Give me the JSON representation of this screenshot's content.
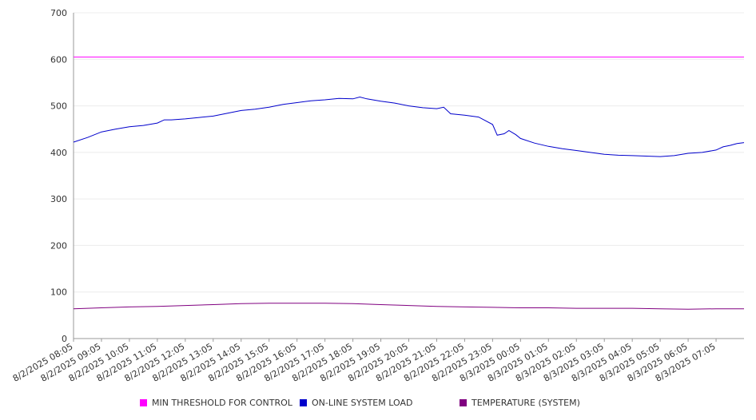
{
  "chart_data": {
    "type": "line",
    "ylim": [
      0,
      700
    ],
    "yticks": [
      0,
      100,
      200,
      300,
      400,
      500,
      600,
      700
    ],
    "x_tick_labels": [
      "8/2/2025 08:05",
      "8/2/2025 09:05",
      "8/2/2025 10:05",
      "8/2/2025 11:05",
      "8/2/2025 12:05",
      "8/2/2025 13:05",
      "8/2/2025 14:05",
      "8/2/2025 15:05",
      "8/2/2025 16:05",
      "8/2/2025 17:05",
      "8/2/2025 18:05",
      "8/2/2025 19:05",
      "8/2/2025 20:05",
      "8/2/2025 21:05",
      "8/2/2025 22:05",
      "8/2/2025 23:05",
      "8/3/2025 00:05",
      "8/3/2025 01:05",
      "8/3/2025 02:05",
      "8/3/2025 03:05",
      "8/3/2025 04:05",
      "8/3/2025 05:05",
      "8/3/2025 06:05",
      "8/3/2025 07:05"
    ],
    "x_range": [
      "8/2/2025 08:05",
      "8/3/2025 08:05"
    ],
    "grid": true,
    "legend_position": "bottom",
    "series": [
      {
        "name": "MIN THRESHOLD FOR CONTROL",
        "color": "#ff00ff",
        "points": [
          [
            "8/2/2025 08:05",
            605
          ],
          [
            "8/3/2025 08:05",
            605
          ]
        ]
      },
      {
        "name": "ON-LINE SYSTEM LOAD",
        "color": "#0000cc",
        "points": [
          [
            "8/2/2025 08:05",
            422
          ],
          [
            "8/2/2025 08:35",
            432
          ],
          [
            "8/2/2025 09:05",
            444
          ],
          [
            "8/2/2025 09:35",
            450
          ],
          [
            "8/2/2025 10:05",
            455
          ],
          [
            "8/2/2025 10:35",
            458
          ],
          [
            "8/2/2025 11:05",
            463
          ],
          [
            "8/2/2025 11:20",
            470
          ],
          [
            "8/2/2025 11:35",
            470
          ],
          [
            "8/2/2025 12:05",
            472
          ],
          [
            "8/2/2025 12:35",
            475
          ],
          [
            "8/2/2025 13:05",
            478
          ],
          [
            "8/2/2025 13:35",
            484
          ],
          [
            "8/2/2025 14:05",
            490
          ],
          [
            "8/2/2025 14:35",
            493
          ],
          [
            "8/2/2025 15:05",
            497
          ],
          [
            "8/2/2025 15:35",
            503
          ],
          [
            "8/2/2025 16:05",
            507
          ],
          [
            "8/2/2025 16:35",
            511
          ],
          [
            "8/2/2025 17:05",
            513
          ],
          [
            "8/2/2025 17:35",
            516
          ],
          [
            "8/2/2025 18:05",
            515
          ],
          [
            "8/2/2025 18:20",
            519
          ],
          [
            "8/2/2025 18:35",
            515
          ],
          [
            "8/2/2025 19:05",
            510
          ],
          [
            "8/2/2025 19:35",
            506
          ],
          [
            "8/2/2025 20:05",
            500
          ],
          [
            "8/2/2025 20:35",
            496
          ],
          [
            "8/2/2025 21:05",
            494
          ],
          [
            "8/2/2025 21:20",
            497
          ],
          [
            "8/2/2025 21:35",
            483
          ],
          [
            "8/2/2025 22:05",
            480
          ],
          [
            "8/2/2025 22:35",
            476
          ],
          [
            "8/2/2025 23:05",
            460
          ],
          [
            "8/2/2025 23:15",
            437
          ],
          [
            "8/2/2025 23:30",
            440
          ],
          [
            "8/2/2025 23:40",
            447
          ],
          [
            "8/2/2025 23:55",
            438
          ],
          [
            "8/3/2025 00:05",
            430
          ],
          [
            "8/3/2025 00:35",
            420
          ],
          [
            "8/3/2025 01:05",
            413
          ],
          [
            "8/3/2025 01:35",
            408
          ],
          [
            "8/3/2025 02:05",
            404
          ],
          [
            "8/3/2025 02:35",
            400
          ],
          [
            "8/3/2025 03:05",
            396
          ],
          [
            "8/3/2025 03:35",
            394
          ],
          [
            "8/3/2025 04:05",
            393
          ],
          [
            "8/3/2025 04:35",
            392
          ],
          [
            "8/3/2025 05:05",
            391
          ],
          [
            "8/3/2025 05:35",
            393
          ],
          [
            "8/3/2025 06:05",
            398
          ],
          [
            "8/3/2025 06:35",
            400
          ],
          [
            "8/3/2025 07:05",
            405
          ],
          [
            "8/3/2025 07:20",
            412
          ],
          [
            "8/3/2025 07:35",
            415
          ],
          [
            "8/3/2025 07:50",
            419
          ],
          [
            "8/3/2025 08:05",
            421
          ]
        ]
      },
      {
        "name": "TEMPERATURE (SYSTEM)",
        "color": "#800080",
        "points": [
          [
            "8/2/2025 08:05",
            64
          ],
          [
            "8/2/2025 09:05",
            66
          ],
          [
            "8/2/2025 10:05",
            68
          ],
          [
            "8/2/2025 11:05",
            69
          ],
          [
            "8/2/2025 12:05",
            71
          ],
          [
            "8/2/2025 13:05",
            73
          ],
          [
            "8/2/2025 14:05",
            75
          ],
          [
            "8/2/2025 15:05",
            76
          ],
          [
            "8/2/2025 16:05",
            76
          ],
          [
            "8/2/2025 17:05",
            76
          ],
          [
            "8/2/2025 18:05",
            75
          ],
          [
            "8/2/2025 19:05",
            73
          ],
          [
            "8/2/2025 20:05",
            71
          ],
          [
            "8/2/2025 21:05",
            69
          ],
          [
            "8/2/2025 22:05",
            68
          ],
          [
            "8/2/2025 23:05",
            67
          ],
          [
            "8/3/2025 00:05",
            66
          ],
          [
            "8/3/2025 01:05",
            66
          ],
          [
            "8/3/2025 02:05",
            65
          ],
          [
            "8/3/2025 03:05",
            65
          ],
          [
            "8/3/2025 04:05",
            65
          ],
          [
            "8/3/2025 05:05",
            64
          ],
          [
            "8/3/2025 06:05",
            63
          ],
          [
            "8/3/2025 07:05",
            64
          ],
          [
            "8/3/2025 08:05",
            64
          ]
        ]
      }
    ]
  }
}
